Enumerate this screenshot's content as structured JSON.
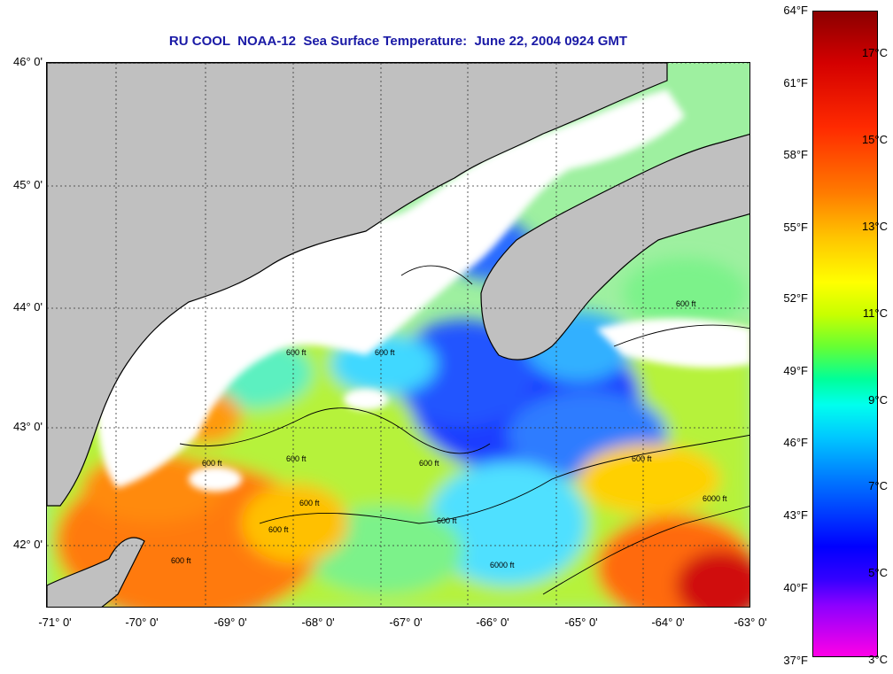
{
  "title": "RU COOL  NOAA-12  Sea Surface Temperature:  June 22, 2004 0924 GMT",
  "latitude_labels": [
    "46° 0'",
    "45° 0'",
    "44° 0'",
    "43° 0'",
    "42° 0'"
  ],
  "longitude_labels": [
    "-71° 0'",
    "-70° 0'",
    "-69° 0'",
    "-68° 0'",
    "-67° 0'",
    "-66° 0'",
    "-65° 0'",
    "-64° 0'",
    "-63° 0'"
  ],
  "colorbar": {
    "fahrenheit_labels": [
      "64°F",
      "61°F",
      "58°F",
      "55°F",
      "52°F",
      "49°F",
      "46°F",
      "43°F",
      "40°F",
      "37°F"
    ],
    "celsius_labels": [
      "17°C",
      "15°C",
      "13°C",
      "11°C",
      "9°C",
      "7°C",
      "5°C",
      "3°C"
    ]
  },
  "contour_labels": [
    "600 ft",
    "600 ft",
    "600 ft",
    "600 ft",
    "600 ft",
    "600 ft",
    "600 ft",
    "600 ft",
    "600 ft",
    "600 ft",
    "600 ft",
    "6000 ft",
    "6000 ft"
  ],
  "colors": {
    "land": "#c0c0c0",
    "cloud": "#ffffff",
    "title": "#1a1aa6"
  }
}
